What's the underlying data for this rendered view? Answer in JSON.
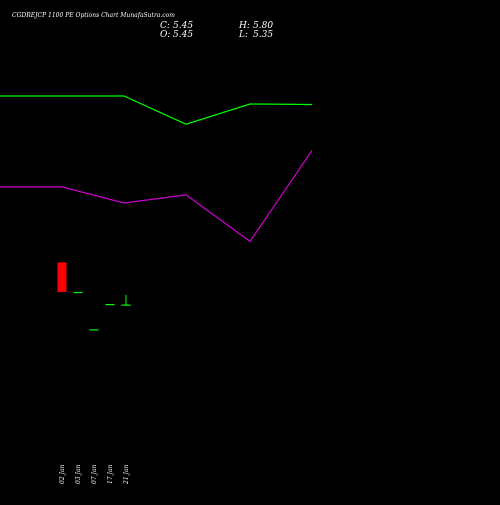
{
  "chart_data": {
    "type": "candlestick",
    "title": "CGDREJCP 1100  PE Options  Chart MunafaSutra.com",
    "ohlc_summary": [
      {
        "label": "C:",
        "value": "5.45"
      },
      {
        "label": "H:",
        "value": "5.80"
      },
      {
        "label": "O:",
        "value": "5.45"
      },
      {
        "label": "L:",
        "value": "5.35"
      }
    ],
    "grid": false,
    "x_labels": [
      "02 Jan",
      "03 Jan",
      "07 Jan",
      "17 Jan",
      "21 Jan"
    ],
    "candles": [
      {
        "date": "02 Jan",
        "open": 8.52,
        "high": 8.52,
        "low": 5.6,
        "close": 5.6,
        "color": "#ff0000"
      },
      {
        "date": "03 Jan",
        "open": 5.6,
        "high": 5.6,
        "low": 5.6,
        "close": 5.6,
        "color": "#00ff00"
      },
      {
        "date": "07 Jan",
        "open": 1.9,
        "high": 1.9,
        "low": 1.9,
        "close": 1.9,
        "color": "#00ff00"
      },
      {
        "date": "17 Jan",
        "open": 4.4,
        "high": 4.4,
        "low": 4.4,
        "close": 4.4,
        "color": "#00ff00"
      },
      {
        "date": "21 Jan",
        "open": 4.35,
        "high": 5.3,
        "low": 4.3,
        "close": 4.35,
        "color": "#00ff00"
      }
    ],
    "series": [
      {
        "color": "#00ff00",
        "values": [
          25.0,
          25.0,
          25.0,
          22.2,
          24.2,
          24.15
        ]
      },
      {
        "color": "#cc00cc",
        "values": [
          16.0,
          16.0,
          14.4,
          15.2,
          10.6,
          19.6
        ]
      }
    ],
    "overlay_x": [
      0,
      62,
      124,
      186,
      250,
      312
    ],
    "ylim": [
      -15,
      34.5
    ],
    "colors": {
      "background": "#000000",
      "text": "#ffffff",
      "up": "#00ff00",
      "down": "#ff0000"
    }
  }
}
